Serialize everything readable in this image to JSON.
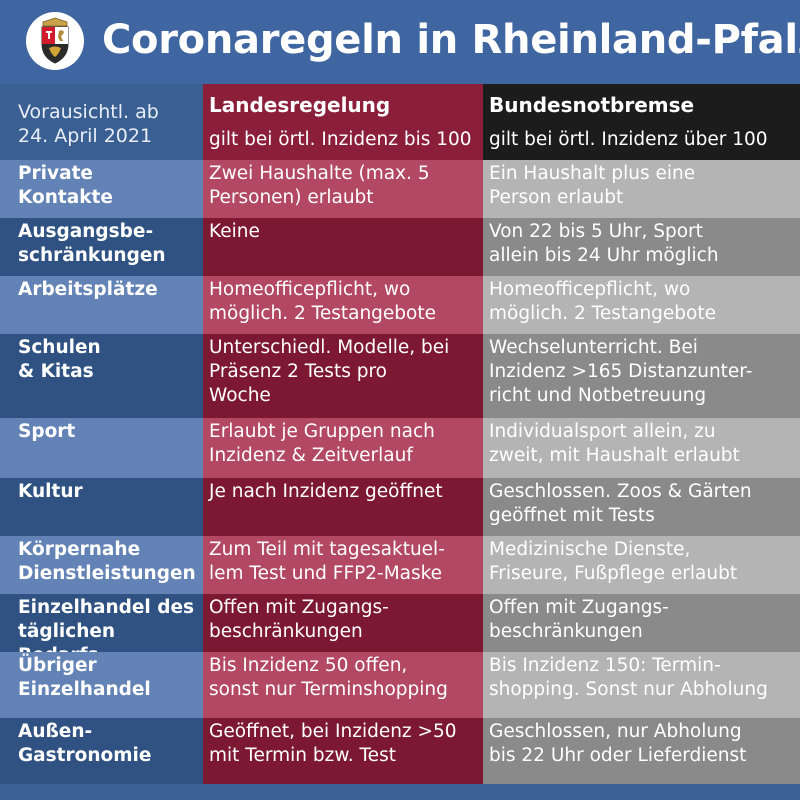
{
  "header": {
    "title": "Coronaregeln in Rheinland-Pfalz",
    "logo_icon": "rlp-coat-of-arms-icon"
  },
  "table": {
    "corner_label": "Vorausichtl. ab\n24. April 2021",
    "columns": [
      {
        "title": "Landesregelung",
        "subtitle": "gilt bei örtl. Inzidenz bis 100"
      },
      {
        "title": "Bundesnotbremse",
        "subtitle": "gilt bei örtl. Inzidenz über 100"
      }
    ],
    "rows": [
      {
        "label": "Private\nKontakte",
        "landes": "Zwei Haushalte (max. 5\nPersonen) erlaubt",
        "bundes": "Ein Haushalt plus eine\nPerson erlaubt"
      },
      {
        "label": "Ausgangsbe-\nschränkungen",
        "landes": "Keine",
        "bundes": "Von 22 bis 5 Uhr, Sport\nallein bis 24 Uhr möglich"
      },
      {
        "label": "Arbeitsplätze",
        "landes": "Homeofficepflicht, wo\nmöglich. 2 Testangebote",
        "bundes": "Homeofficepflicht, wo\nmöglich. 2 Testangebote"
      },
      {
        "label": "Schulen\n& Kitas",
        "landes": "Unterschiedl. Modelle, bei\nPräsenz 2 Tests pro\nWoche",
        "bundes": "Wechselunterricht. Bei\nInzidenz >165 Distanzunter-\nricht und Notbetreuung"
      },
      {
        "label": "Sport",
        "landes": "Erlaubt je Gruppen nach\nInzidenz & Zeitverlauf",
        "bundes": "Individualsport allein, zu\nzweit, mit Haushalt erlaubt"
      },
      {
        "label": "Kultur",
        "landes": "Je nach Inzidenz geöffnet",
        "bundes": "Geschlossen.  Zoos & Gärten\ngeöffnet mit Tests"
      },
      {
        "label": "Körpernahe\nDienstleistungen",
        "landes": "Zum Teil mit tagesaktuel-\nlem Test und FFP2-Maske",
        "bundes": "Medizinische Dienste,\nFriseure, Fußpflege erlaubt"
      },
      {
        "label": "Einzelhandel des\ntäglichen Bedarfs",
        "landes": "Offen mit Zugangs-\nbeschränkungen",
        "bundes": "Offen mit Zugangs-\nbeschränkungen"
      },
      {
        "label": "Übriger\nEinzelhandel",
        "landes": "Bis Inzidenz 50 offen,\nsonst nur Terminshopping",
        "bundes": "Bis Inzidenz 150: Termin-\nshopping. Sonst nur Abholung"
      },
      {
        "label": "Außen-\nGastronomie",
        "landes": "Geöffnet, bei Inzidenz >50\nmit Termin bzw. Test",
        "bundes": "Geschlossen, nur Abholung\nbis 22 Uhr oder Lieferdienst"
      }
    ]
  },
  "colors": {
    "blue": "#3d6198",
    "landes_red": "#8b1f3a",
    "bundes_black": "#1c1c1c"
  }
}
